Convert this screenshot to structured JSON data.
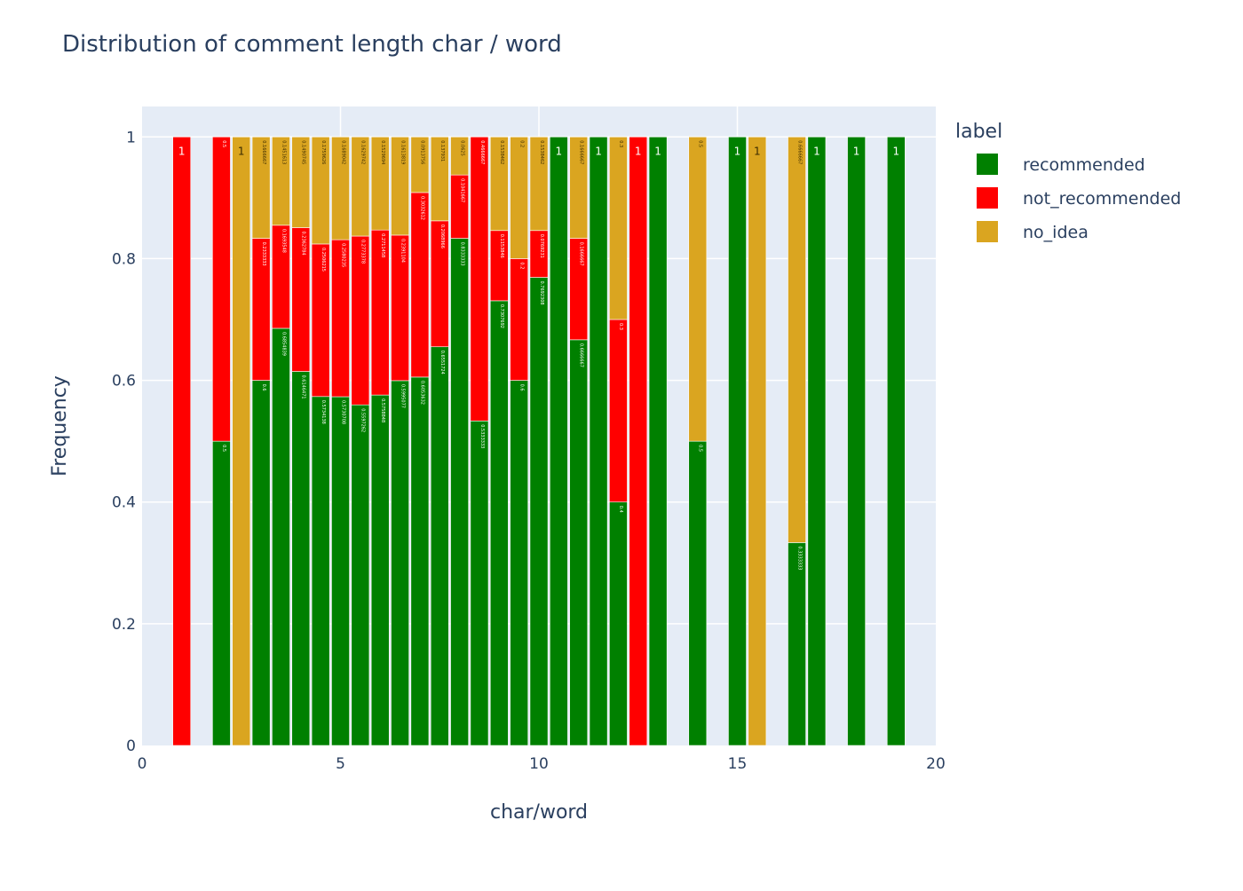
{
  "chart_data": {
    "type": "bar",
    "barmode": "stack",
    "title": "Distribution of comment length char / word",
    "xlabel": "char/word",
    "ylabel": "Frequency",
    "xlim": [
      0,
      20
    ],
    "ylim": [
      0,
      1.05
    ],
    "x_ticks": [
      "0",
      "5",
      "10",
      "15",
      "20"
    ],
    "y_ticks": [
      "0",
      "0.2",
      "0.4",
      "0.6",
      "0.8",
      "1"
    ],
    "grid": true,
    "legend": {
      "title": "label",
      "placement": "right"
    },
    "colors": {
      "recommended": "#008000",
      "not_recommended": "#ff0000",
      "no_idea": "#daa520",
      "plot_bg": "#e5ecf6"
    },
    "x": [
      1,
      2,
      2.5,
      3,
      3.5,
      4,
      4.5,
      5,
      5.5,
      6,
      6.5,
      7,
      7.5,
      8,
      8.5,
      9,
      9.5,
      10,
      10.5,
      11,
      11.5,
      12,
      12.5,
      13,
      14,
      15,
      15.5,
      16.5,
      17,
      18,
      19
    ],
    "series": [
      {
        "name": "recommended",
        "values": [
          0,
          0.5,
          0,
          0.6,
          0.6854839,
          0.6146471,
          0.5734138,
          0.5730708,
          0.5597262,
          0.5758848,
          0.5995077,
          0.6053632,
          0.6551724,
          0.8333333,
          0.5333333,
          0.7307692,
          0.6,
          0.7692308,
          1,
          0.6666667,
          1,
          0.4,
          0,
          1,
          0.5,
          1,
          0,
          0.3333333,
          1,
          1,
          1
        ]
      },
      {
        "name": "not_recommended",
        "values": [
          1,
          0.5,
          0,
          0.2333333,
          0.1693548,
          0.2362784,
          0.2506215,
          0.2580235,
          0.2773378,
          0.2711458,
          0.2391104,
          0.3032612,
          0.2068966,
          0.1041667,
          0.4666667,
          0.1153846,
          0.2,
          0.0769231,
          0,
          0.1666667,
          0,
          0.3,
          1,
          0,
          0,
          0,
          0,
          0,
          0,
          0,
          0
        ]
      },
      {
        "name": "no_idea",
        "values": [
          0,
          0,
          1,
          0.1666667,
          0.1451613,
          0.1490745,
          0.1759626,
          0.1689042,
          0.1629742,
          0.1529694,
          0.1613819,
          0.0913756,
          0.137931,
          0.0625,
          0,
          0.1538462,
          0.2,
          0.1538462,
          0,
          0.1666667,
          0,
          0.3,
          0,
          0,
          0.5,
          0,
          1,
          0.6666667,
          0,
          0,
          0
        ]
      }
    ]
  }
}
